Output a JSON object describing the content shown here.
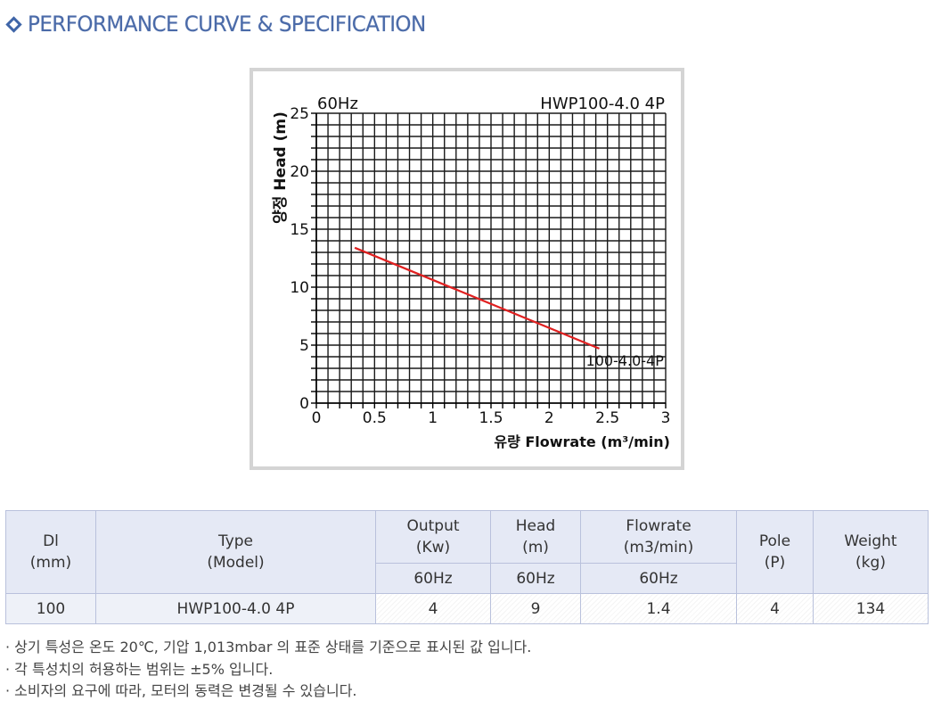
{
  "section_title": "PERFORMANCE CURVE & SPECIFICATION",
  "chart_data": {
    "type": "line",
    "frequency_label": "60Hz",
    "model_label": "HWP100-4.0 4P",
    "ylabel": "양정 Head (m)",
    "xlabel": "유량 Flowrate (m³/min)",
    "xlim": [
      0,
      3
    ],
    "ylim": [
      0,
      25
    ],
    "x_ticks": [
      "0",
      "0.5",
      "1",
      "1.5",
      "2",
      "2.5",
      "3"
    ],
    "y_ticks": [
      "0",
      "5",
      "10",
      "15",
      "20",
      "25"
    ],
    "x_tick_values": [
      0,
      0.5,
      1,
      1.5,
      2,
      2.5,
      3
    ],
    "y_tick_values": [
      0,
      5,
      10,
      15,
      20,
      25
    ],
    "grid": true,
    "series": [
      {
        "name": "100-4.0-4P",
        "color": "#e02020",
        "x": [
          0.33,
          2.43
        ],
        "y": [
          13.4,
          4.7
        ]
      }
    ]
  },
  "table": {
    "headers": {
      "dl": [
        "Dl",
        "(mm)"
      ],
      "type": [
        "Type",
        "(Model)"
      ],
      "output": [
        "Output",
        "(Kw)"
      ],
      "head": [
        "Head",
        "(m)"
      ],
      "flowrate": [
        "Flowrate",
        "(m3/min)"
      ],
      "pole": [
        "Pole",
        "(P)"
      ],
      "weight": [
        "Weight",
        "(kg)"
      ],
      "output_hz": "60Hz",
      "head_hz": "60Hz",
      "flowrate_hz": "60Hz"
    },
    "row": {
      "dl": "100",
      "model": "HWP100-4.0 4P",
      "output": "4",
      "head": "9",
      "flowrate": "1.4",
      "pole": "4",
      "weight": "134"
    }
  },
  "notes": [
    "· 상기 특성은 온도 20℃, 기압 1,013mbar 의 표준 상태를 기준으로 표시된 값 입니다.",
    "· 각 특성치의 허용하는 범위는 ±5% 입니다.",
    "· 소비자의 요구에 따라, 모터의 동력은 변경될 수 있습니다."
  ]
}
